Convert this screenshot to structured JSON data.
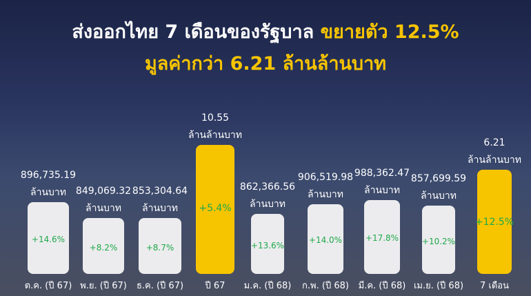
{
  "header": {
    "title_white": "ส่งออกไทย 7 เดือนของรัฐบาล",
    "title_yellow": "ขยายตัว 12.5%",
    "subtitle": "มูลค่ากว่า 6.21 ล้านล้านบาท"
  },
  "items": [
    {
      "value": "896,735.19",
      "unit": "ล้านบาท",
      "growth": "+14.6%",
      "label": "ต.ค. (ปี 67)"
    },
    {
      "value": "849,069.32",
      "unit": "ล้านบาท",
      "growth": "+8.2%",
      "label": "พ.ย. (ปี 67)"
    },
    {
      "value": "853,304.64",
      "unit": "ล้านบาท",
      "growth": "+8.7%",
      "label": "ธ.ค. (ปี 67)"
    },
    {
      "value": "10.55",
      "unit": "ล้านล้านบาท",
      "growth": "+5.4%",
      "label": "ปี 67"
    },
    {
      "value": "862,366.56",
      "unit": "ล้านบาท",
      "growth": "+13.6%",
      "label": "ม.ค. (ปี 68)"
    },
    {
      "value": "906,519.98",
      "unit": "ล้านบาท",
      "growth": "+14.0%",
      "label": "ก.พ. (ปี 68)"
    },
    {
      "value": "988,362.47",
      "unit": "ล้านบาท",
      "growth": "+17.8%",
      "label": "มี.ค. (ปี 68)"
    },
    {
      "value": "857,699.59",
      "unit": "ล้านบาท",
      "growth": "+10.2%",
      "label": "เม.ย. (ปี 68)"
    },
    {
      "value": "6.21",
      "unit": "ล้านล้านบาท",
      "growth": "+12.5%",
      "label": "7 เดือน"
    }
  ]
}
